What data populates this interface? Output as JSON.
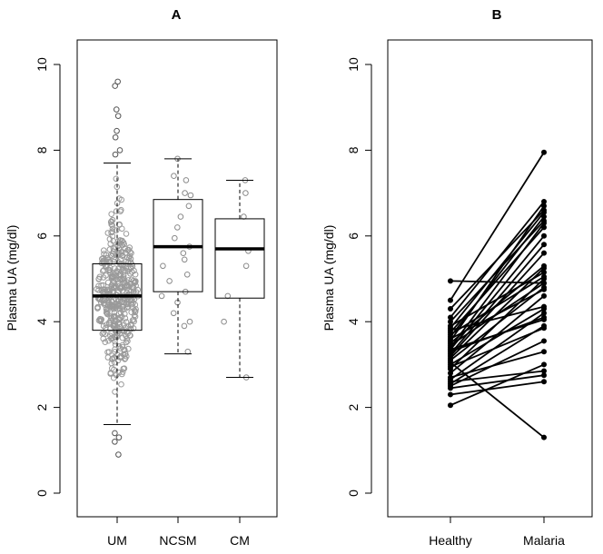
{
  "chart_data": [
    {
      "type": "boxplot",
      "title": "A",
      "ylabel": "Plasma UA (mg/dl)",
      "ylim": [
        0,
        10
      ],
      "yticks": [
        "0",
        "2",
        "4",
        "6",
        "8",
        "10"
      ],
      "categories": [
        "UM",
        "NCSM",
        "CM"
      ],
      "boxes": [
        {
          "name": "UM",
          "whisker_low": 1.6,
          "q1": 3.8,
          "median": 4.6,
          "q3": 5.35,
          "whisker_high": 7.7,
          "outliers": [
            0.9,
            1.2,
            1.3,
            1.4,
            9.5,
            9.6,
            8.8,
            8.95,
            8.45,
            8.3,
            8.0,
            7.9
          ]
        },
        {
          "name": "NCSM",
          "whisker_low": 3.25,
          "q1": 4.7,
          "median": 5.75,
          "q3": 6.85,
          "whisker_high": 7.8,
          "outliers": []
        },
        {
          "name": "CM",
          "whisker_low": 2.7,
          "q1": 4.55,
          "median": 5.7,
          "q3": 6.4,
          "whisker_high": 7.3,
          "outliers": []
        }
      ],
      "points": {
        "UM": {
          "n": 450
        },
        "NCSM": [
          3.3,
          3.9,
          4.0,
          4.2,
          4.45,
          4.6,
          4.7,
          4.95,
          5.1,
          5.3,
          5.45,
          5.6,
          5.75,
          5.95,
          6.2,
          6.45,
          6.7,
          6.95,
          7.0,
          7.3,
          7.4,
          7.8
        ],
        "CM": [
          2.7,
          4.0,
          4.6,
          5.3,
          5.65,
          6.45,
          7.0,
          7.3
        ]
      }
    },
    {
      "type": "paired-line",
      "title": "B",
      "ylabel": "Plasma UA (mg/dl)",
      "ylim": [
        0,
        10
      ],
      "yticks": [
        "0",
        "2",
        "4",
        "6",
        "8",
        "10"
      ],
      "categories": [
        "Healthy",
        "Malaria"
      ],
      "pairs": [
        [
          2.05,
          3.0
        ],
        [
          2.3,
          2.6
        ],
        [
          2.45,
          2.75
        ],
        [
          2.55,
          3.9
        ],
        [
          2.65,
          4.2
        ],
        [
          2.7,
          3.3
        ],
        [
          2.8,
          4.6
        ],
        [
          2.9,
          5.0
        ],
        [
          2.95,
          3.85
        ],
        [
          3.0,
          4.3
        ],
        [
          3.1,
          4.8
        ],
        [
          3.15,
          5.25
        ],
        [
          3.2,
          5.6
        ],
        [
          3.3,
          4.1
        ],
        [
          3.35,
          6.0
        ],
        [
          3.4,
          6.3
        ],
        [
          3.45,
          4.9
        ],
        [
          3.5,
          5.3
        ],
        [
          3.55,
          6.7
        ],
        [
          3.6,
          4.75
        ],
        [
          3.65,
          6.45
        ],
        [
          3.7,
          5.05
        ],
        [
          3.75,
          6.2
        ],
        [
          3.8,
          4.35
        ],
        [
          3.85,
          6.55
        ],
        [
          3.9,
          5.15
        ],
        [
          4.0,
          6.35
        ],
        [
          4.1,
          6.8
        ],
        [
          4.3,
          6.6
        ],
        [
          4.5,
          7.95
        ],
        [
          4.95,
          4.9
        ],
        [
          2.6,
          2.85
        ],
        [
          3.05,
          1.3
        ],
        [
          2.5,
          3.55
        ],
        [
          3.25,
          5.8
        ],
        [
          3.35,
          4.05
        ]
      ]
    }
  ]
}
